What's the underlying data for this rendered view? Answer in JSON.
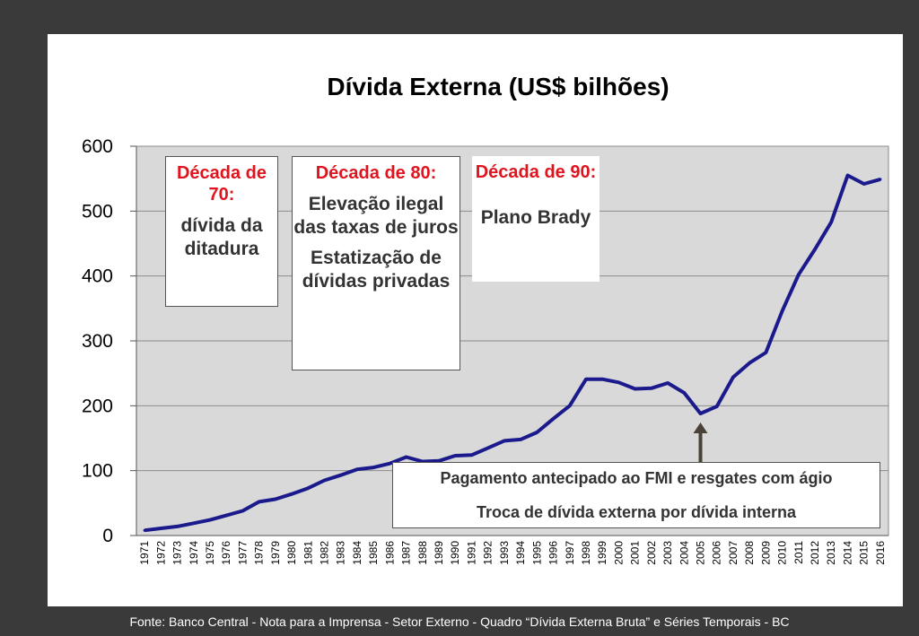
{
  "chart_data": {
    "type": "line",
    "title": "Dívida Externa (US$ bilhões)",
    "xlabel": "",
    "ylabel": "",
    "ylim": [
      0,
      600
    ],
    "yticks": [
      "0",
      "100",
      "200",
      "300",
      "400",
      "500",
      "600"
    ],
    "grid": "horizontal",
    "series_color": "#1a1a8c",
    "plot_background": "#d9d9d9",
    "categories": [
      "1971",
      "1972",
      "1973",
      "1974",
      "1975",
      "1976",
      "1977",
      "1978",
      "1979",
      "1980",
      "1981",
      "1982",
      "1983",
      "1984",
      "1985",
      "1986",
      "1987",
      "1988",
      "1989",
      "1990",
      "1991",
      "1992",
      "1993",
      "1994",
      "1995",
      "1996",
      "1997",
      "1998",
      "1999",
      "2000",
      "2001",
      "2002",
      "2003",
      "2004",
      "2005",
      "2006",
      "2007",
      "2008",
      "2009",
      "2010",
      "2011",
      "2012",
      "2013",
      "2014",
      "2015",
      "2016"
    ],
    "values": [
      8,
      11,
      14,
      19,
      24,
      31,
      38,
      52,
      56,
      64,
      73,
      85,
      93,
      102,
      105,
      111,
      121,
      114,
      115,
      123,
      124,
      135,
      146,
      148,
      159,
      180,
      200,
      241,
      241,
      236,
      226,
      227,
      235,
      220,
      188,
      199,
      244,
      266,
      282,
      346,
      402,
      441,
      483,
      555,
      542,
      549
    ]
  },
  "annotations": {
    "box70": {
      "heading": "Década de 70:",
      "body": "dívida da ditadura"
    },
    "box80": {
      "heading": "Década de 80:",
      "body1": "Elevação ilegal das taxas de juros",
      "body2": "Estatização de dívidas privadas"
    },
    "box90": {
      "heading": "Década de 90:",
      "body": "Plano Brady"
    },
    "fmi": {
      "line1": "Pagamento antecipado ao FMI e resgates com ágio",
      "line2": "Troca de dívida externa por dívida interna",
      "arrow_year": "2005"
    }
  },
  "footer": "Fonte: Banco Central - Nota para a Imprensa - Setor Externo - Quadro “Dívida Externa Bruta” e Séries Temporais - BC"
}
